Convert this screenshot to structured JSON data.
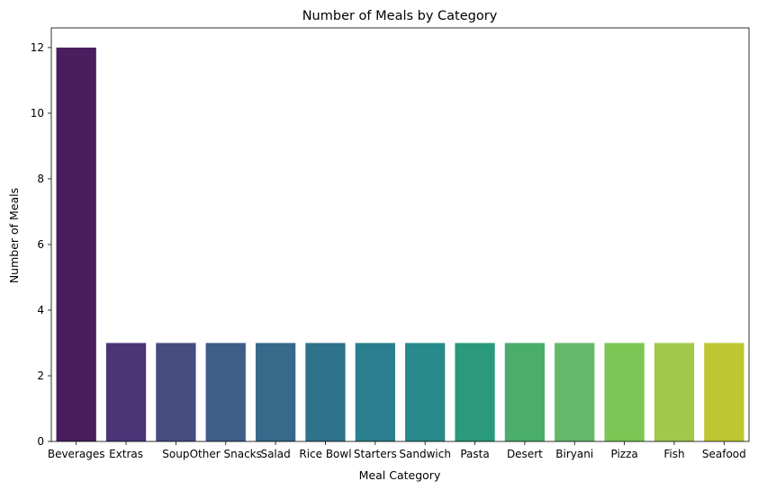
{
  "chart_data": {
    "type": "bar",
    "title": "Number of Meals by Category",
    "xlabel": "Meal Category",
    "ylabel": "Number of Meals",
    "categories": [
      "Beverages",
      "Extras",
      "Soup",
      "Other Snacks",
      "Salad",
      "Rice Bowl",
      "Starters",
      "Sandwich",
      "Pasta",
      "Desert",
      "Biryani",
      "Pizza",
      "Fish",
      "Seafood"
    ],
    "values": [
      12,
      3,
      3,
      3,
      3,
      3,
      3,
      3,
      3,
      3,
      3,
      3,
      3,
      3
    ],
    "ylim": [
      0,
      12.6
    ],
    "yticks": [
      0,
      2,
      4,
      6,
      8,
      10,
      12
    ],
    "grid": false,
    "colors": [
      "#481e5f",
      "#4a3576",
      "#464c80",
      "#3e5d87",
      "#36698a",
      "#2f728c",
      "#2b7e8d",
      "#288a8a",
      "#2a9a7b",
      "#4aad6c",
      "#64b96b",
      "#7bc654",
      "#a0c84a",
      "#bec632"
    ]
  }
}
